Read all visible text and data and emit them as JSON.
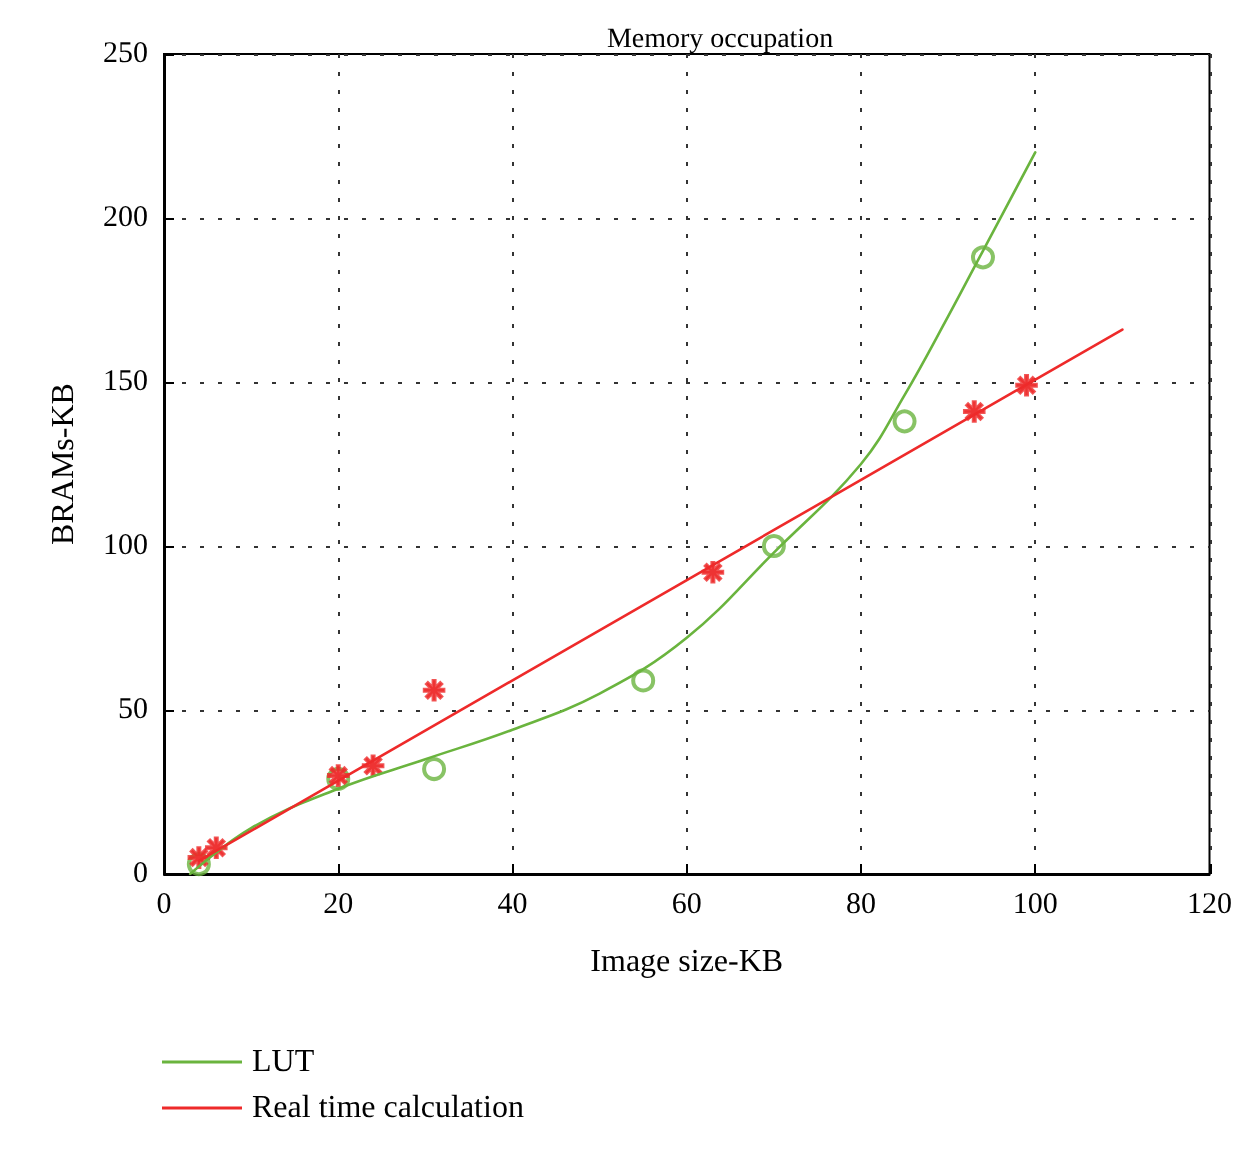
{
  "chart_data": {
    "type": "line",
    "title": "Memory occupation",
    "xlabel": "Image size-KB",
    "ylabel": "BRAMs-KB",
    "xlim": [
      0,
      120
    ],
    "xticks": [
      0,
      20,
      40,
      60,
      80,
      100,
      120
    ],
    "ylim": [
      0,
      250
    ],
    "yticks": [
      0,
      50,
      100,
      150,
      200,
      250
    ],
    "grid": true,
    "legend": "bottom left",
    "series": [
      {
        "name": "LUT",
        "color": "#6ab43e",
        "marker": "none",
        "x": [
          3,
          10,
          20,
          30,
          40,
          50,
          60,
          70,
          80,
          85,
          90,
          94,
          100
        ],
        "values": [
          0,
          14,
          26,
          35,
          44,
          55,
          72,
          98,
          125,
          146,
          170,
          190,
          220
        ]
      },
      {
        "name": "Real time calculation",
        "color": "#ee2a2a",
        "marker": "none",
        "x": [
          4,
          110
        ],
        "values": [
          4,
          166
        ]
      },
      {
        "type": "scatter",
        "color": "#6ab43e",
        "marker": "circle",
        "x": [
          4,
          20,
          31,
          55,
          70,
          85,
          94
        ],
        "values": [
          3,
          29,
          32,
          59,
          100,
          138,
          188
        ]
      },
      {
        "type": "scatter",
        "color": "#ee2a2a",
        "marker": "star",
        "x": [
          4,
          6,
          20,
          24,
          31,
          63,
          93,
          99
        ],
        "values": [
          5,
          8,
          30,
          33,
          56,
          92,
          141,
          149
        ]
      }
    ]
  }
}
